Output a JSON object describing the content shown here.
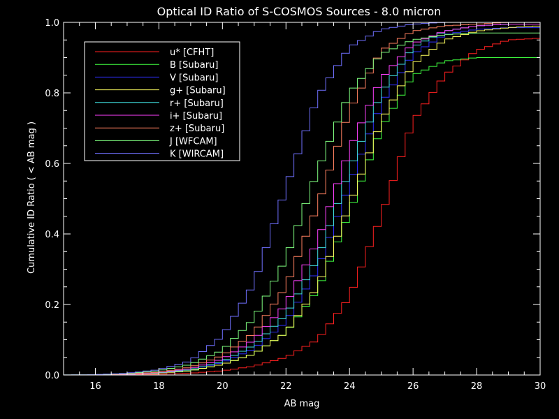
{
  "chart_data": {
    "type": "line",
    "step": true,
    "title": "Optical ID Ratio of S-COSMOS Sources - 8.0 micron",
    "xlabel": "AB mag",
    "ylabel": "Cumulative ID Ratio  ( < AB mag )",
    "xlim": [
      15,
      30
    ],
    "ylim": [
      0,
      1
    ],
    "xticks": [
      16,
      18,
      20,
      22,
      24,
      26,
      28,
      30
    ],
    "yticks": [
      0.0,
      0.2,
      0.4,
      0.6,
      0.8,
      1.0
    ],
    "ytick_labels": [
      "0.0",
      "0.2",
      "0.4",
      "0.6",
      "0.8",
      "1.0"
    ],
    "grid": false,
    "legend_position": "top-left",
    "bin_width": 0.25,
    "x": [
      15,
      16,
      17,
      18,
      19,
      20,
      21,
      22,
      23,
      24,
      25,
      26,
      27,
      28,
      29,
      30
    ],
    "series": [
      {
        "name": "u* [CFHT]",
        "color": "#ff2020",
        "values": [
          0,
          0,
          0.001,
          0.002,
          0.005,
          0.012,
          0.025,
          0.05,
          0.1,
          0.22,
          0.45,
          0.72,
          0.85,
          0.92,
          0.95,
          0.955
        ]
      },
      {
        "name": "B [Subaru]",
        "color": "#40ff40",
        "values": [
          0,
          0,
          0.002,
          0.005,
          0.012,
          0.03,
          0.06,
          0.12,
          0.24,
          0.46,
          0.7,
          0.85,
          0.89,
          0.9,
          0.9,
          0.9
        ]
      },
      {
        "name": "V [Subaru]",
        "color": "#3030ff",
        "values": [
          0,
          0,
          0.002,
          0.006,
          0.015,
          0.035,
          0.075,
          0.15,
          0.3,
          0.54,
          0.77,
          0.91,
          0.965,
          0.98,
          0.985,
          0.985
        ]
      },
      {
        "name": "g+ [Subaru]",
        "color": "#ffff60",
        "values": [
          0,
          0,
          0.002,
          0.005,
          0.012,
          0.03,
          0.06,
          0.12,
          0.25,
          0.48,
          0.72,
          0.88,
          0.95,
          0.975,
          0.985,
          0.99
        ]
      },
      {
        "name": "r+ [Subaru]",
        "color": "#40e0e0",
        "values": [
          0,
          0,
          0.002,
          0.006,
          0.015,
          0.038,
          0.085,
          0.17,
          0.33,
          0.58,
          0.8,
          0.93,
          0.975,
          0.99,
          0.995,
          0.995
        ]
      },
      {
        "name": "i+ [Subaru]",
        "color": "#ff40ff",
        "values": [
          0,
          0,
          0.002,
          0.007,
          0.018,
          0.045,
          0.1,
          0.2,
          0.38,
          0.64,
          0.84,
          0.94,
          0.975,
          0.99,
          0.995,
          0.995
        ]
      },
      {
        "name": "z+ [Subaru]",
        "color": "#ff8060",
        "values": [
          0,
          0,
          0.003,
          0.008,
          0.022,
          0.055,
          0.12,
          0.25,
          0.48,
          0.75,
          0.92,
          0.975,
          0.99,
          0.995,
          1.0,
          1.0
        ]
      },
      {
        "name": "J [WFCAM]",
        "color": "#80ff80",
        "values": [
          0,
          0.001,
          0.004,
          0.012,
          0.03,
          0.07,
          0.16,
          0.33,
          0.58,
          0.8,
          0.91,
          0.95,
          0.965,
          0.97,
          0.97,
          0.97
        ]
      },
      {
        "name": "K [WIRCAM]",
        "color": "#7070ff",
        "values": [
          0,
          0.001,
          0.005,
          0.015,
          0.04,
          0.11,
          0.26,
          0.53,
          0.79,
          0.93,
          0.98,
          0.995,
          1.0,
          1.0,
          1.0,
          1.0
        ]
      }
    ]
  }
}
